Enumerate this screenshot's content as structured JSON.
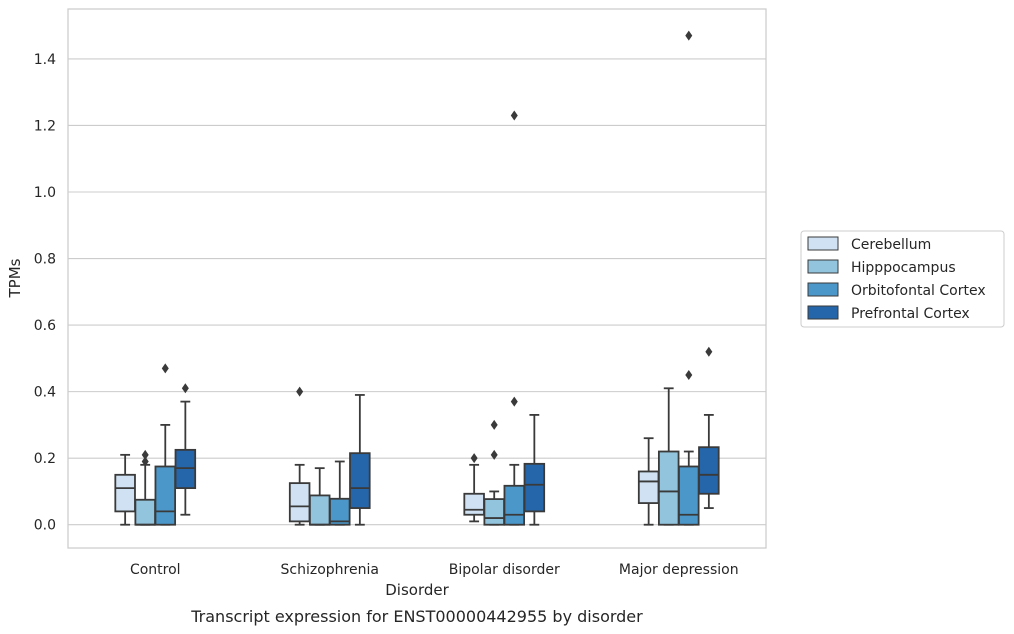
{
  "chart_data": {
    "type": "box",
    "title": "",
    "caption": "Transcript expression for ENST00000442955 by disorder",
    "xlabel": "Disorder",
    "ylabel": "TPMs",
    "ylim": [
      -0.07,
      1.55
    ],
    "yticks": [
      "0.0",
      "0.2",
      "0.4",
      "0.6",
      "0.8",
      "1.0",
      "1.2",
      "1.4"
    ],
    "grid": "horizontal",
    "legend_position": "right",
    "categories": [
      "Control",
      "Schizophrenia",
      "Bipolar disorder",
      "Major depression"
    ],
    "series": [
      {
        "name": "Cerebellum",
        "color": "#cfe1f2",
        "boxes": [
          {
            "low": 0.0,
            "q1": 0.04,
            "median": 0.11,
            "q3": 0.15,
            "high": 0.21,
            "outliers": []
          },
          {
            "low": 0.0,
            "q1": 0.01,
            "median": 0.055,
            "q3": 0.125,
            "high": 0.18,
            "outliers": [
              0.4
            ]
          },
          {
            "low": 0.01,
            "q1": 0.03,
            "median": 0.045,
            "q3": 0.093,
            "high": 0.18,
            "outliers": [
              0.2
            ]
          },
          {
            "low": 0.0,
            "q1": 0.065,
            "median": 0.13,
            "q3": 0.16,
            "high": 0.26,
            "outliers": []
          }
        ]
      },
      {
        "name": "Hipppocampus",
        "color": "#93c4de",
        "boxes": [
          {
            "low": 0.0,
            "q1": 0.0,
            "median": 0.0,
            "q3": 0.075,
            "high": 0.18,
            "outliers": [
              0.19,
              0.21
            ]
          },
          {
            "low": 0.0,
            "q1": 0.0,
            "median": 0.0,
            "q3": 0.088,
            "high": 0.17,
            "outliers": []
          },
          {
            "low": 0.0,
            "q1": 0.0,
            "median": 0.02,
            "q3": 0.077,
            "high": 0.1,
            "outliers": [
              0.21,
              0.3
            ]
          },
          {
            "low": 0.0,
            "q1": 0.0,
            "median": 0.1,
            "q3": 0.22,
            "high": 0.41,
            "outliers": []
          }
        ]
      },
      {
        "name": "Orbitofontal Cortex",
        "color": "#4b97c9",
        "boxes": [
          {
            "low": 0.0,
            "q1": 0.0,
            "median": 0.04,
            "q3": 0.175,
            "high": 0.3,
            "outliers": [
              0.47
            ]
          },
          {
            "low": 0.0,
            "q1": 0.0,
            "median": 0.01,
            "q3": 0.078,
            "high": 0.19,
            "outliers": []
          },
          {
            "low": 0.0,
            "q1": 0.0,
            "median": 0.03,
            "q3": 0.117,
            "high": 0.18,
            "outliers": [
              0.37,
              1.23
            ]
          },
          {
            "low": 0.0,
            "q1": 0.0,
            "median": 0.03,
            "q3": 0.175,
            "high": 0.22,
            "outliers": [
              0.45,
              1.47
            ]
          }
        ]
      },
      {
        "name": "Prefrontal Cortex",
        "color": "#2565a9",
        "boxes": [
          {
            "low": 0.03,
            "q1": 0.11,
            "median": 0.17,
            "q3": 0.225,
            "high": 0.37,
            "outliers": [
              0.41
            ]
          },
          {
            "low": 0.0,
            "q1": 0.05,
            "median": 0.11,
            "q3": 0.215,
            "high": 0.39,
            "outliers": []
          },
          {
            "low": 0.0,
            "q1": 0.04,
            "median": 0.12,
            "q3": 0.183,
            "high": 0.33,
            "outliers": []
          },
          {
            "low": 0.05,
            "q1": 0.093,
            "median": 0.15,
            "q3": 0.233,
            "high": 0.33,
            "outliers": [
              0.52
            ]
          }
        ]
      }
    ]
  }
}
